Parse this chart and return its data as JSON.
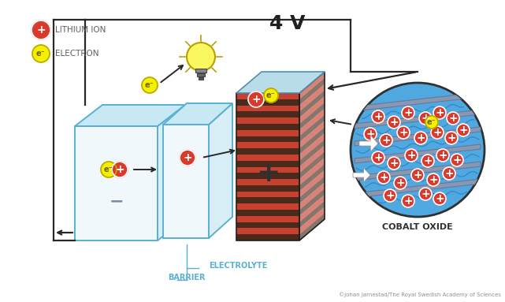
{
  "bg_color": "#ffffff",
  "lithium_ion_color": "#d93a2b",
  "electron_color": "#f5f000",
  "electron_ring_color": "#b8a800",
  "battery_stripe_red": "#c84030",
  "battery_stripe_dark": "#4a2a1a",
  "battery_top_color": "#b8dce8",
  "box_outline_color": "#5ab0d0",
  "box_fill_front": "#f0f8fc",
  "box_fill_side": "#d8eef6",
  "box_fill_top": "#c8e8f4",
  "cobalt_bg_color": "#50a8e0",
  "cobalt_plate_color": "#8898b0",
  "arrow_color": "#282828",
  "text_color": "#606060",
  "label_lithium": "LITHIUM ION",
  "label_electron": "ELECTRON",
  "label_4v": "4 V",
  "label_electrolyte": "ELECTROLYTE",
  "label_barrier": "BARRIER",
  "label_cobalt": "COBALT OXIDE",
  "label_copyright": "©Johan Jarnestad/The Royal Swedish Academy of Sciences",
  "figsize": [
    6.41,
    3.83
  ],
  "dpi": 100
}
